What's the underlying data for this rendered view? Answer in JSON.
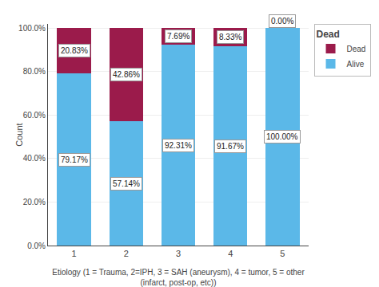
{
  "chart_data": {
    "type": "bar",
    "categories": [
      "1",
      "2",
      "3",
      "4",
      "5"
    ],
    "series": [
      {
        "name": "Alive",
        "color": "#5BB8E8",
        "values": [
          79.17,
          57.14,
          92.31,
          91.67,
          100.0
        ],
        "value_labels": [
          "79.17%",
          "57.14%",
          "92.31%",
          "91.67%",
          "100.00%"
        ]
      },
      {
        "name": "Dead",
        "color": "#9B1B4B",
        "values": [
          20.83,
          42.86,
          7.69,
          8.33,
          0.0
        ],
        "value_labels": [
          "20.83%",
          "42.86%",
          "7.69%",
          "8.33%",
          "0.00%"
        ]
      }
    ],
    "xlabel": "Etiology (1 = Trauma, 2=IPH, 3 = SAH (aneurysm), 4 = tumor, 5 = other\n(infarct, post-op, etc))",
    "ylabel": "Count",
    "legend_title": "Dead",
    "ylim": [
      0,
      102
    ],
    "yticks": [
      {
        "value": 0,
        "label": "0.0%"
      },
      {
        "value": 20,
        "label": "20.0%"
      },
      {
        "value": 40,
        "label": "40.0%"
      },
      {
        "value": 60,
        "label": "60.0%"
      },
      {
        "value": 80,
        "label": "80.0%"
      },
      {
        "value": 100,
        "label": "100.0%"
      }
    ],
    "grid": true,
    "stacked": true,
    "data_labels": true,
    "legend": "upper right"
  }
}
